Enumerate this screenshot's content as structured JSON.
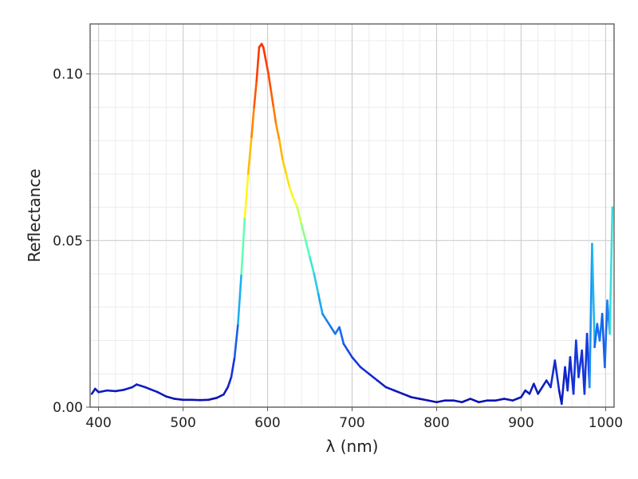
{
  "chart_data": {
    "type": "line",
    "xlabel": "λ (nm)",
    "ylabel": "Reflectance",
    "xlim": [
      390,
      1010
    ],
    "ylim": [
      0.0,
      0.115
    ],
    "grid": true,
    "x_ticks": [
      400,
      500,
      600,
      700,
      800,
      900,
      1000
    ],
    "x_tick_labels": [
      "400",
      "500",
      "600",
      "700",
      "800",
      "900",
      "1000"
    ],
    "y_ticks": [
      0.0,
      0.05,
      0.1
    ],
    "y_tick_labels": [
      "0.00",
      "0.05",
      "0.10"
    ],
    "colormap": [
      "#0a0aa8",
      "#1840e8",
      "#1aa8f5",
      "#4dffc4",
      "#ffff20",
      "#ffb000",
      "#ff5a00",
      "#ff2a00"
    ],
    "series": [
      {
        "x": [
          392,
          396,
          400,
          410,
          420,
          430,
          440,
          445,
          450,
          455,
          460,
          470,
          480,
          490,
          500,
          510,
          520,
          530,
          540,
          548,
          553,
          557,
          561,
          565,
          569,
          573,
          577,
          581,
          584,
          587,
          590,
          593,
          595,
          598,
          601,
          604,
          607,
          610,
          614,
          618,
          622,
          626,
          630,
          635,
          640,
          645,
          650,
          655,
          660,
          665,
          670,
          675,
          680,
          685,
          690,
          695,
          700,
          710,
          720,
          730,
          740,
          750,
          760,
          770,
          780,
          790,
          800,
          810,
          820,
          830,
          840,
          850,
          860,
          870,
          880,
          890,
          900,
          905,
          910,
          915,
          920,
          925,
          930,
          935,
          940,
          945,
          948,
          952,
          955,
          958,
          962,
          965,
          968,
          972,
          975,
          978,
          981,
          984,
          987,
          990,
          993,
          996,
          999,
          1002,
          1005,
          1008
        ],
        "y": [
          0.004,
          0.0055,
          0.0045,
          0.005,
          0.0048,
          0.0052,
          0.006,
          0.0068,
          0.0064,
          0.006,
          0.0055,
          0.0045,
          0.0032,
          0.0025,
          0.0022,
          0.0022,
          0.0021,
          0.0022,
          0.0028,
          0.0038,
          0.006,
          0.009,
          0.015,
          0.025,
          0.04,
          0.057,
          0.07,
          0.081,
          0.09,
          0.098,
          0.108,
          0.109,
          0.108,
          0.104,
          0.1,
          0.095,
          0.09,
          0.085,
          0.08,
          0.074,
          0.07,
          0.066,
          0.063,
          0.06,
          0.055,
          0.05,
          0.045,
          0.04,
          0.034,
          0.028,
          0.026,
          0.024,
          0.022,
          0.024,
          0.019,
          0.017,
          0.015,
          0.012,
          0.01,
          0.008,
          0.006,
          0.005,
          0.004,
          0.003,
          0.0025,
          0.002,
          0.0015,
          0.002,
          0.002,
          0.0015,
          0.0025,
          0.0015,
          0.002,
          0.002,
          0.0025,
          0.002,
          0.003,
          0.005,
          0.004,
          0.007,
          0.004,
          0.006,
          0.008,
          0.006,
          0.014,
          0.005,
          0.001,
          0.012,
          0.005,
          0.015,
          0.004,
          0.02,
          0.009,
          0.017,
          0.004,
          0.022,
          0.006,
          0.049,
          0.018,
          0.025,
          0.02,
          0.028,
          0.012,
          0.032,
          0.022,
          0.06
        ]
      }
    ]
  }
}
